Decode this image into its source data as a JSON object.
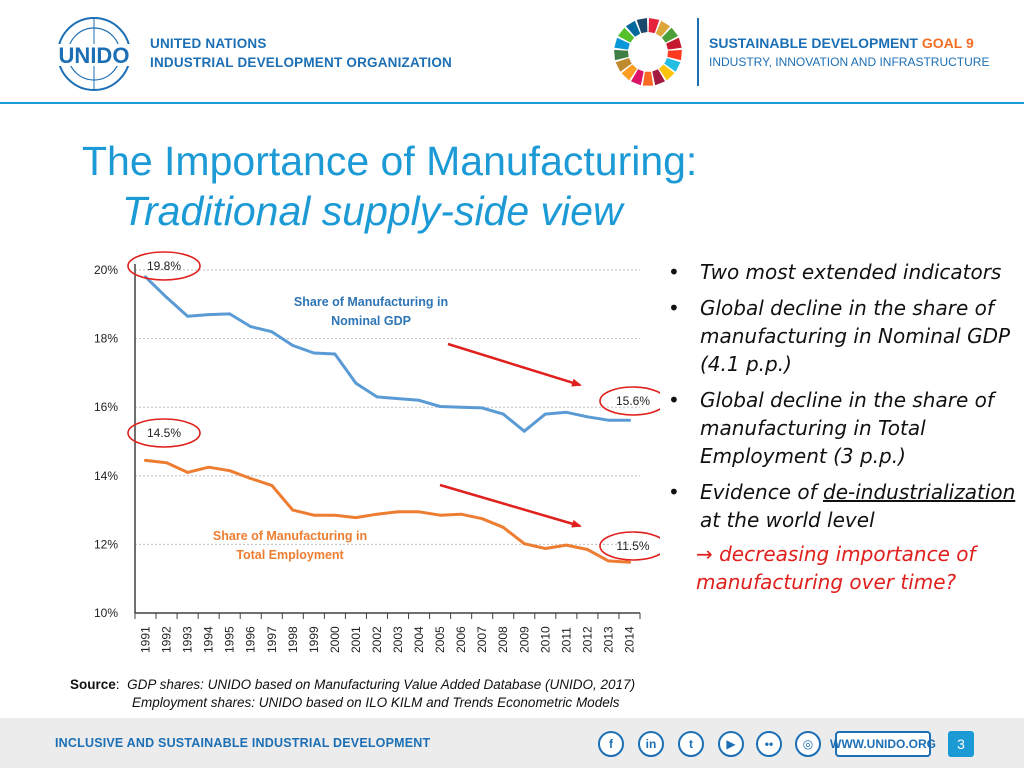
{
  "header": {
    "org_line1": "UNITED NATIONS",
    "org_line2": "INDUSTRIAL DEVELOPMENT ORGANIZATION",
    "logo_text": "UNIDO",
    "sdg_line1_a": "SUSTAINABLE DEVELOPMENT ",
    "sdg_line1_b": "GOAL 9",
    "sdg_line2": "INDUSTRY, INNOVATION AND INFRASTRUCTURE"
  },
  "title": {
    "line1": "The Importance of Manufacturing:",
    "line2": "Traditional supply-side view"
  },
  "chart_data": {
    "type": "line",
    "x": [
      1991,
      1992,
      1993,
      1994,
      1995,
      1996,
      1997,
      1998,
      1999,
      2000,
      2001,
      2002,
      2003,
      2004,
      2005,
      2006,
      2007,
      2008,
      2009,
      2010,
      2011,
      2012,
      2013,
      2014
    ],
    "series": [
      {
        "name": "Share of Manufacturing in Nominal GDP",
        "label_line1": "Share of Manufacturing in",
        "label_line2": "Nominal GDP",
        "color": "#5b9bd5",
        "label_color": "#2e75b6",
        "values": [
          19.8,
          19.2,
          18.65,
          18.7,
          18.72,
          18.35,
          18.2,
          17.8,
          17.58,
          17.55,
          16.7,
          16.3,
          16.25,
          16.2,
          16.02,
          16.0,
          15.98,
          15.8,
          15.3,
          15.8,
          15.85,
          15.72,
          15.62,
          15.62
        ]
      },
      {
        "name": "Share of Manufacturing in Total Employment",
        "label_line1": "Share of Manufacturing in",
        "label_line2": "Total Employment",
        "color": "#ed7d31",
        "label_color": "#ed7d31",
        "values": [
          14.45,
          14.38,
          14.1,
          14.25,
          14.15,
          13.92,
          13.72,
          13.0,
          12.85,
          12.85,
          12.78,
          12.88,
          12.95,
          12.95,
          12.85,
          12.88,
          12.75,
          12.5,
          12.02,
          11.88,
          11.98,
          11.85,
          11.52,
          11.48
        ]
      }
    ],
    "yticks": [
      10,
      12,
      14,
      16,
      18,
      20
    ],
    "ytick_labels": [
      "10%",
      "12%",
      "14%",
      "16%",
      "18%",
      "20%"
    ],
    "ylim": [
      10,
      20
    ],
    "grid": true,
    "annotations": [
      {
        "text": "19.8%",
        "series": 0,
        "index": 0
      },
      {
        "text": "15.6%",
        "series": 0,
        "index": 23
      },
      {
        "text": "14.5%",
        "series": 1,
        "index": 0
      },
      {
        "text": "11.5%",
        "series": 1,
        "index": 23
      }
    ]
  },
  "bullets": {
    "b1": "Two most extended indicators",
    "b2": "Global decline in the share of manufacturing in Nominal GDP (4.1 p.p.)",
    "b3": "Global decline in the share of manufacturing in Total Employment (3 p.p.)",
    "b4_pre": "Evidence of ",
    "b4_u": "de-industrialization",
    "b4_post": " at the world level",
    "conclusion": "→ decreasing importance of manufacturing over time?",
    "bullet_glyph": "•"
  },
  "source": {
    "label": "Source",
    "colon": ":",
    "line1": "GDP shares: UNIDO based on Manufacturing Value Added Database (UNIDO, 2017)",
    "line2": "Employment shares: UNIDO based on ILO KILM and Trends Econometric Models"
  },
  "footer": {
    "tagline": "INCLUSIVE AND SUSTAINABLE INDUSTRIAL DEVELOPMENT",
    "social": [
      {
        "name": "facebook-icon",
        "glyph": "f"
      },
      {
        "name": "linkedin-icon",
        "glyph": "in"
      },
      {
        "name": "twitter-icon",
        "glyph": "t"
      },
      {
        "name": "youtube-icon",
        "glyph": "▶"
      },
      {
        "name": "flickr-icon",
        "glyph": "••"
      },
      {
        "name": "instagram-icon",
        "glyph": "◎"
      }
    ],
    "website": "WWW.UNIDO.ORG",
    "page_number": "3"
  },
  "colors": {
    "brand_blue": "#1c6fb5",
    "title_blue": "#1c9ad6",
    "arrow_red": "#e0201c",
    "circle_red": "#e0201c"
  }
}
